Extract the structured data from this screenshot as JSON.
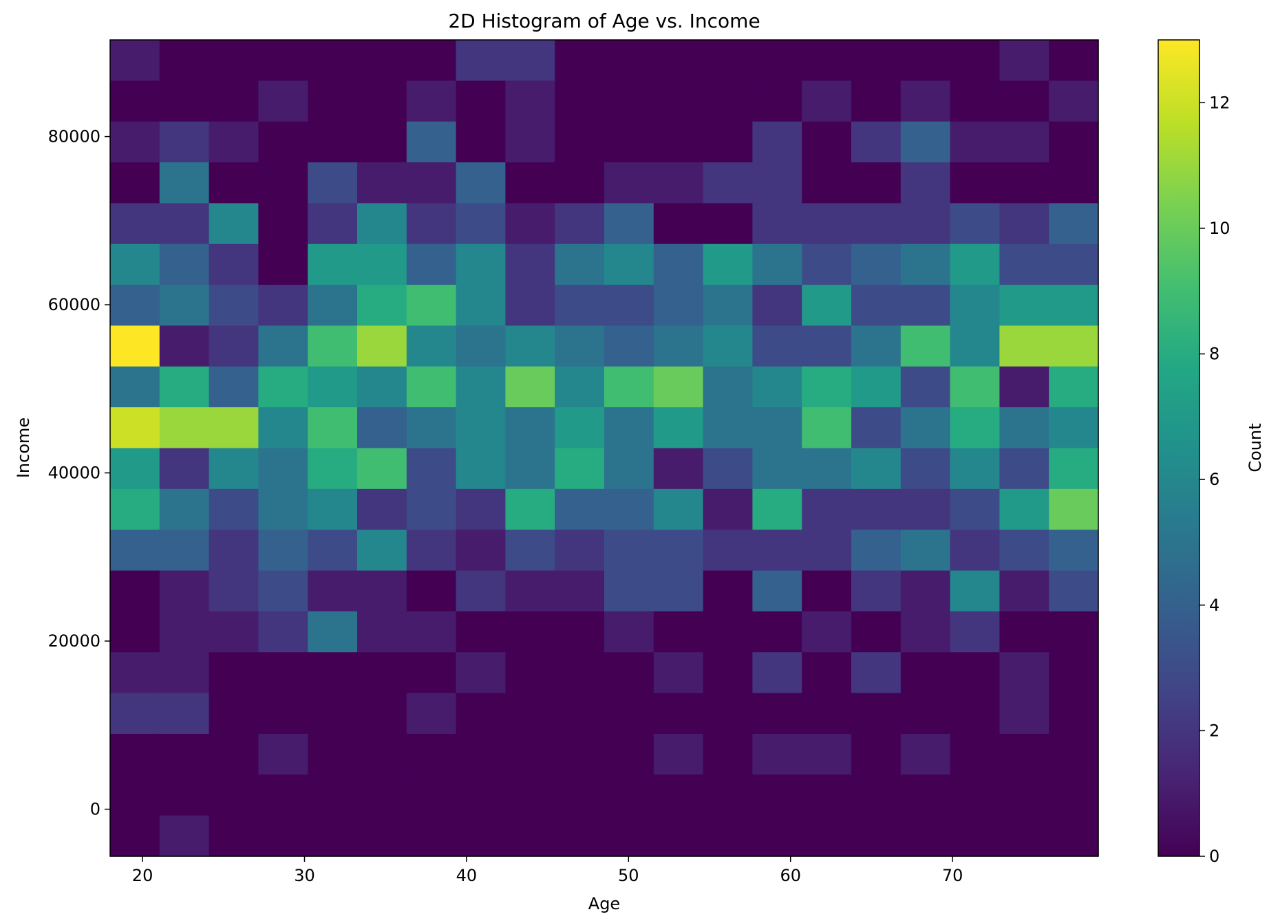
{
  "chart_data": {
    "type": "heatmap",
    "title": "2D Histogram of Age vs. Income",
    "xlabel": "Age",
    "ylabel": "Income",
    "colorbar_label": "Count",
    "colormap": "viridis",
    "xlim": [
      18,
      79
    ],
    "ylim": [
      -5600,
      91500
    ],
    "color_range": [
      0,
      13
    ],
    "x_bin_count": 20,
    "y_bin_count": 20,
    "x_ticks": [
      20,
      30,
      40,
      50,
      60,
      70
    ],
    "x_tick_labels": [
      "20",
      "30",
      "40",
      "50",
      "60",
      "70"
    ],
    "y_ticks": [
      0,
      20000,
      40000,
      60000,
      80000
    ],
    "y_tick_labels": [
      "0",
      "20000",
      "40000",
      "60000",
      "80000"
    ],
    "colorbar_ticks": [
      0,
      2,
      4,
      6,
      8,
      10,
      12
    ],
    "colorbar_tick_labels": [
      "0",
      "2",
      "4",
      "6",
      "8",
      "10",
      "12"
    ],
    "counts_rows_top_to_bottom": [
      [
        1,
        0,
        0,
        0,
        0,
        0,
        0,
        2,
        2,
        0,
        0,
        0,
        0,
        0,
        0,
        0,
        0,
        0,
        1,
        0
      ],
      [
        0,
        0,
        0,
        1,
        0,
        0,
        1,
        0,
        1,
        0,
        0,
        0,
        0,
        0,
        1,
        0,
        1,
        0,
        0,
        1
      ],
      [
        1,
        2,
        1,
        0,
        0,
        0,
        4,
        0,
        1,
        0,
        0,
        0,
        0,
        2,
        0,
        2,
        4,
        1,
        1,
        0
      ],
      [
        0,
        5,
        0,
        0,
        3,
        1,
        1,
        4,
        0,
        0,
        1,
        1,
        2,
        2,
        0,
        0,
        2,
        0,
        0,
        0
      ],
      [
        2,
        2,
        6,
        0,
        2,
        6,
        2,
        3,
        1,
        2,
        4,
        0,
        0,
        2,
        2,
        2,
        2,
        3,
        2,
        4
      ],
      [
        6,
        4,
        2,
        0,
        7,
        7,
        4,
        6,
        2,
        5,
        6,
        4,
        7,
        5,
        3,
        4,
        5,
        7,
        3,
        3
      ],
      [
        4,
        5,
        3,
        2,
        5,
        8,
        9,
        6,
        2,
        3,
        3,
        4,
        5,
        2,
        7,
        3,
        3,
        6,
        7,
        7
      ],
      [
        13,
        1,
        2,
        5,
        9,
        11,
        6,
        5,
        6,
        5,
        4,
        5,
        6,
        3,
        3,
        5,
        9,
        6,
        11,
        11
      ],
      [
        5,
        8,
        4,
        8,
        7,
        6,
        9,
        6,
        10,
        6,
        9,
        10,
        5,
        6,
        8,
        7,
        3,
        9,
        1,
        8
      ],
      [
        12,
        11,
        11,
        6,
        9,
        4,
        5,
        6,
        5,
        7,
        5,
        7,
        5,
        5,
        9,
        3,
        5,
        8,
        5,
        6
      ],
      [
        7,
        2,
        6,
        5,
        8,
        9,
        3,
        6,
        5,
        8,
        5,
        1,
        3,
        5,
        5,
        6,
        3,
        6,
        3,
        8
      ],
      [
        8,
        5,
        3,
        5,
        6,
        2,
        3,
        2,
        8,
        4,
        4,
        6,
        1,
        8,
        2,
        2,
        2,
        3,
        7,
        10
      ],
      [
        4,
        4,
        2,
        4,
        3,
        6,
        2,
        1,
        3,
        2,
        3,
        3,
        2,
        2,
        2,
        4,
        5,
        2,
        3,
        4
      ],
      [
        0,
        1,
        2,
        3,
        1,
        1,
        0,
        2,
        1,
        1,
        3,
        3,
        0,
        4,
        0,
        2,
        1,
        6,
        1,
        3
      ],
      [
        0,
        1,
        1,
        2,
        5,
        1,
        1,
        0,
        0,
        0,
        1,
        0,
        0,
        0,
        1,
        0,
        1,
        2,
        0,
        0
      ],
      [
        1,
        1,
        0,
        0,
        0,
        0,
        0,
        1,
        0,
        0,
        0,
        1,
        0,
        2,
        0,
        2,
        0,
        0,
        1,
        0
      ],
      [
        2,
        2,
        0,
        0,
        0,
        0,
        1,
        0,
        0,
        0,
        0,
        0,
        0,
        0,
        0,
        0,
        0,
        0,
        1,
        0
      ],
      [
        0,
        0,
        0,
        1,
        0,
        0,
        0,
        0,
        0,
        0,
        0,
        1,
        0,
        1,
        1,
        0,
        1,
        0,
        0,
        0
      ],
      [
        0,
        0,
        0,
        0,
        0,
        0,
        0,
        0,
        0,
        0,
        0,
        0,
        0,
        0,
        0,
        0,
        0,
        0,
        0,
        0
      ],
      [
        0,
        1,
        0,
        0,
        0,
        0,
        0,
        0,
        0,
        0,
        0,
        0,
        0,
        0,
        0,
        0,
        0,
        0,
        0,
        0
      ]
    ]
  }
}
